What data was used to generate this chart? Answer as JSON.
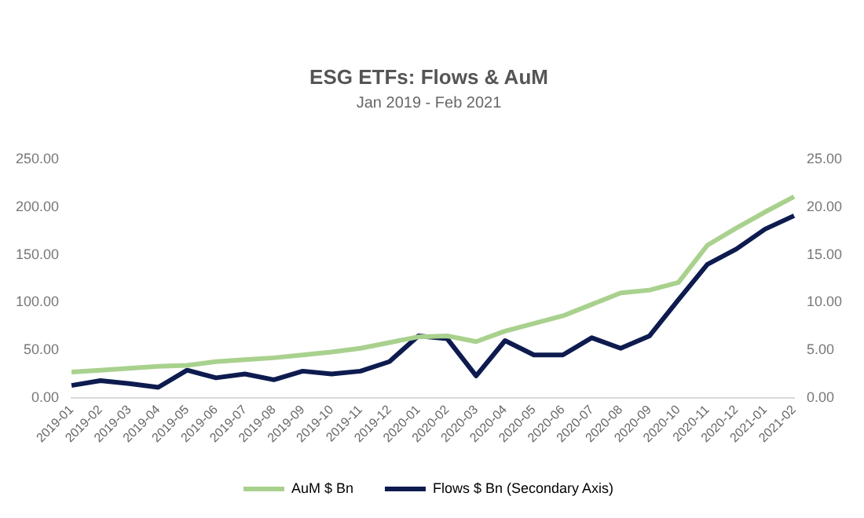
{
  "chart_data": {
    "type": "line",
    "title": "ESG ETFs: Flows & AuM",
    "subtitle": "Jan 2019 - Feb 2021",
    "categories": [
      "2019-01",
      "2019-02",
      "2019-03",
      "2019-04",
      "2019-05",
      "2019-06",
      "2019-07",
      "2019-08",
      "2019-09",
      "2019-10",
      "2019-11",
      "2019-12",
      "2020-01",
      "2020-02",
      "2020-03",
      "2020-04",
      "2020-05",
      "2020-06",
      "2020-07",
      "2020-08",
      "2020-09",
      "2020-10",
      "2020-11",
      "2020-12",
      "2021-01",
      "2021-02"
    ],
    "series": [
      {
        "name": "AuM $ Bn",
        "color": "#a9d18e",
        "values": [
          27,
          29,
          31,
          33,
          34,
          38,
          40,
          42,
          45,
          48,
          52,
          58,
          64,
          65,
          59,
          70,
          78,
          86,
          98,
          110,
          113,
          121,
          160,
          178,
          195,
          211
        ]
      },
      {
        "name": "Flows $ Bn (Secondary Axis)",
        "color": "#0d1b4f",
        "axis": "y2",
        "values": [
          1.3,
          1.8,
          1.5,
          1.1,
          2.9,
          2.1,
          2.5,
          1.9,
          2.8,
          2.5,
          2.8,
          3.8,
          6.5,
          6.2,
          2.3,
          6.0,
          4.5,
          4.5,
          6.3,
          5.2,
          6.5,
          10.3,
          14.0,
          15.6,
          17.7,
          19.1
        ]
      }
    ],
    "ylim": [
      0,
      250
    ],
    "yticks": [
      {
        "value": 0,
        "label": "0.00"
      },
      {
        "value": 50,
        "label": "50.00"
      },
      {
        "value": 100,
        "label": "100.00"
      },
      {
        "value": 150,
        "label": "150.00"
      },
      {
        "value": 200,
        "label": "200.00"
      },
      {
        "value": 250,
        "label": "250.00"
      }
    ],
    "y2lim": [
      0,
      25
    ],
    "y2ticks": [
      {
        "value": 0,
        "label": "0.00"
      },
      {
        "value": 5,
        "label": "5.00"
      },
      {
        "value": 10,
        "label": "10.00"
      },
      {
        "value": 15,
        "label": "15.00"
      },
      {
        "value": 20,
        "label": "20.00"
      },
      {
        "value": 25,
        "label": "25.00"
      }
    ],
    "legend": "bottom",
    "marker": "none",
    "line_style": "solid"
  }
}
